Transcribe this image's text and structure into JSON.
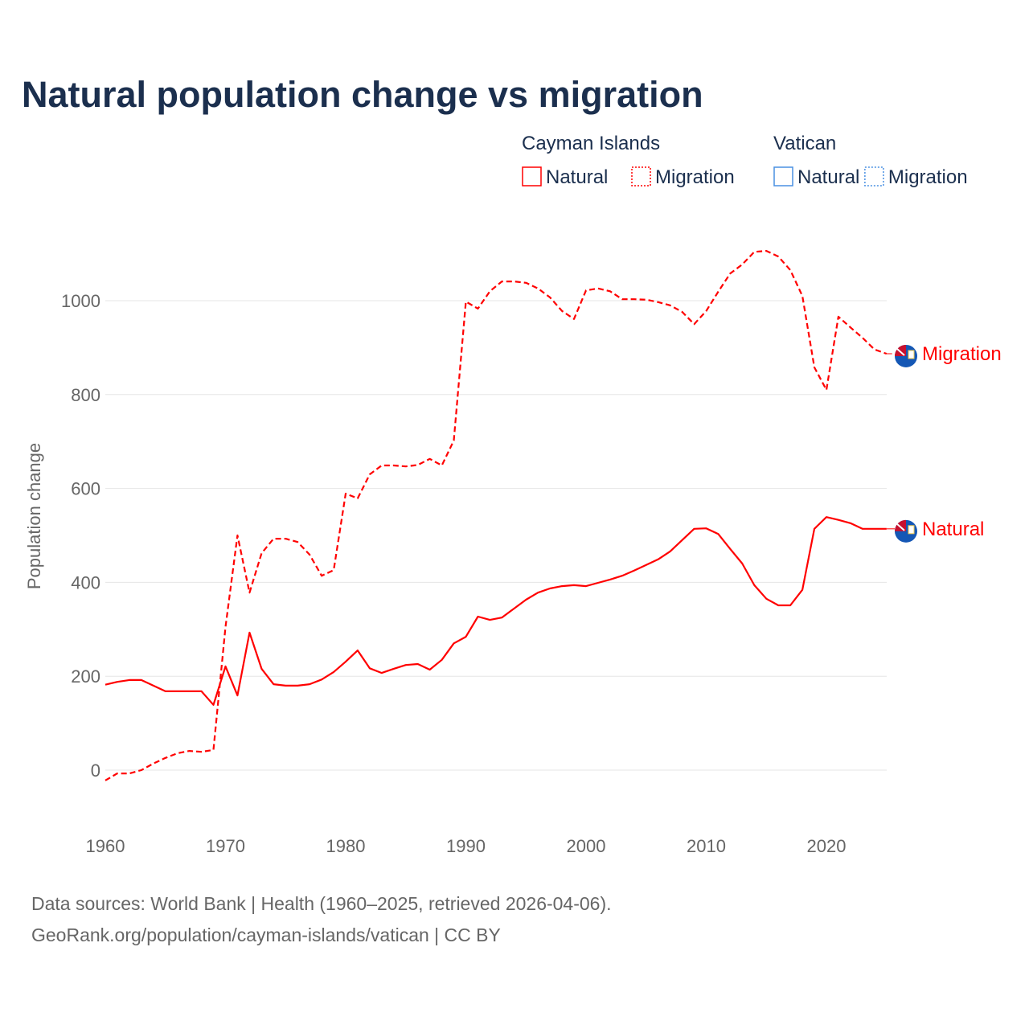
{
  "chart_data": {
    "type": "line",
    "title": "Natural population change vs migration",
    "xlabel": "",
    "ylabel": "Population change",
    "xlim": [
      1960,
      2025
    ],
    "ylim": [
      -100,
      1150
    ],
    "x_ticks": [
      1960,
      1970,
      1980,
      1990,
      2000,
      2010,
      2020
    ],
    "y_ticks": [
      0,
      200,
      400,
      600,
      800,
      1000
    ],
    "grid": true,
    "legend_groups": [
      {
        "name": "Cayman Islands",
        "color": "#ff0000",
        "entries": [
          "Natural",
          "Migration"
        ]
      },
      {
        "name": "Vatican",
        "color": "#4a90e2",
        "entries": [
          "Natural",
          "Migration"
        ]
      }
    ],
    "x": [
      1960,
      1961,
      1962,
      1963,
      1964,
      1965,
      1966,
      1967,
      1968,
      1969,
      1970,
      1971,
      1972,
      1973,
      1974,
      1975,
      1976,
      1977,
      1978,
      1979,
      1980,
      1981,
      1982,
      1983,
      1984,
      1985,
      1986,
      1987,
      1988,
      1989,
      1990,
      1991,
      1992,
      1993,
      1994,
      1995,
      1996,
      1997,
      1998,
      1999,
      2000,
      2001,
      2002,
      2003,
      2004,
      2005,
      2006,
      2007,
      2008,
      2009,
      2010,
      2011,
      2012,
      2013,
      2014,
      2015,
      2016,
      2017,
      2018,
      2019,
      2020,
      2021,
      2022,
      2023,
      2024,
      2025
    ],
    "series": [
      {
        "name": "Cayman Islands Natural",
        "label": "Natural",
        "color": "#ff0000",
        "dash": "solid",
        "values": [
          182,
          188,
          192,
          192,
          180,
          168,
          168,
          168,
          168,
          139,
          221,
          159,
          293,
          216,
          183,
          180,
          180,
          183,
          193,
          209,
          231,
          255,
          217,
          207,
          216,
          224,
          226,
          214,
          235,
          270,
          284,
          327,
          320,
          325,
          344,
          363,
          378,
          387,
          392,
          394,
          392,
          399,
          406,
          414,
          425,
          437,
          449,
          466,
          490,
          514,
          515,
          503,
          471,
          440,
          394,
          365,
          351,
          351,
          384,
          514,
          539,
          533,
          526,
          514,
          514,
          514
        ]
      },
      {
        "name": "Cayman Islands Migration",
        "label": "Migration",
        "color": "#ff0000",
        "dash": "dashed",
        "values": [
          -22,
          -7,
          -7,
          0,
          14,
          26,
          36,
          41,
          39,
          43,
          305,
          500,
          378,
          462,
          493,
          493,
          486,
          459,
          414,
          426,
          589,
          579,
          630,
          649,
          649,
          647,
          650,
          663,
          649,
          702,
          998,
          983,
          1020,
          1041,
          1041,
          1038,
          1026,
          1007,
          978,
          961,
          1022,
          1026,
          1020,
          1003,
          1003,
          1002,
          997,
          990,
          976,
          950,
          978,
          1019,
          1058,
          1077,
          1104,
          1106,
          1094,
          1065,
          1010,
          858,
          810,
          966,
          943,
          921,
          896,
          887
        ]
      }
    ]
  },
  "footer": {
    "line1": "Data sources: World Bank | Health (1960–2025, retrieved 2026-04-06).",
    "line2": "GeoRank.org/population/cayman-islands/vatican | CC BY"
  }
}
